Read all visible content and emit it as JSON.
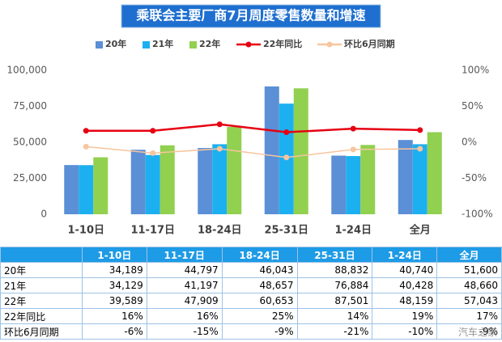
{
  "chart_data": {
    "type": "bar",
    "title": "乘联会主要厂商7月周度零售数量和增速",
    "categories": [
      "1-10日",
      "11-17日",
      "18-24日",
      "25-31日",
      "1-24日",
      "全月"
    ],
    "series": [
      {
        "name": "20年",
        "color": "#5b8fd6",
        "values": [
          34189,
          44797,
          46043,
          88832,
          40740,
          51600
        ]
      },
      {
        "name": "21年",
        "color": "#1cb0f0",
        "values": [
          34129,
          41197,
          48657,
          76884,
          40428,
          48660
        ]
      },
      {
        "name": "22年",
        "color": "#92d050",
        "values": [
          39589,
          47909,
          60653,
          87501,
          48159,
          57043
        ]
      },
      {
        "name": "22年同比",
        "type": "line",
        "axis": "y2",
        "color": "#e60012",
        "values": [
          16,
          16,
          25,
          14,
          19,
          17
        ]
      },
      {
        "name": "环比6月同期",
        "type": "line",
        "axis": "y2",
        "color": "#f7c59f",
        "values": [
          -6,
          -15,
          -9,
          -21,
          -10,
          -9
        ]
      }
    ],
    "ylim": [
      0,
      100000
    ],
    "yticks": [
      0,
      {
        "value": 25000,
        "label": "25,000"
      },
      {
        "value": 50000,
        "label": "50,000"
      },
      {
        "value": 75000,
        "label": "75,000"
      },
      {
        "value": 100000,
        "label": "100,000"
      }
    ],
    "y2lim": [
      -100,
      100
    ],
    "y2ticks": [
      {
        "value": -100,
        "label": "-100%"
      },
      {
        "value": -50,
        "label": "-50%"
      },
      {
        "value": 0,
        "label": "0%"
      },
      {
        "value": 50,
        "label": "50%"
      },
      {
        "value": 100,
        "label": "100%"
      }
    ]
  },
  "table": {
    "header": [
      "",
      "1-10日",
      "11-17日",
      "18-24日",
      "25-31日",
      "1-24日",
      "全月"
    ],
    "rows": [
      [
        "20年",
        "34,189",
        "44,797",
        "46,043",
        "88,832",
        "40,740",
        "51,600"
      ],
      [
        "21年",
        "34,129",
        "41,197",
        "48,657",
        "76,884",
        "40,428",
        "48,660"
      ],
      [
        "22年",
        "39,589",
        "47,909",
        "60,653",
        "87,501",
        "48,159",
        "57,043"
      ],
      [
        "22年同比",
        "16%",
        "16%",
        "25%",
        "14%",
        "19%",
        "17%"
      ],
      [
        "环比6月同期",
        "-6%",
        "-15%",
        "-9%",
        "-21%",
        "-10%",
        "-9%"
      ]
    ]
  },
  "watermark": "汽车之家"
}
